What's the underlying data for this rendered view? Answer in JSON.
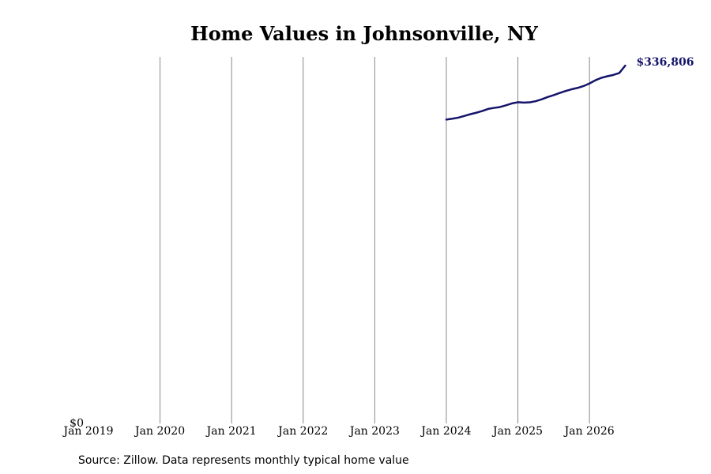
{
  "chart_data": {
    "type": "line",
    "title": "Home Values in Johnsonville, NY",
    "xlabel": "",
    "ylabel": "",
    "x_ticks": [
      "Jan 2019",
      "Jan 2020",
      "Jan 2021",
      "Jan 2022",
      "Jan 2023",
      "Jan 2024",
      "Jan 2025",
      "Jan 2026"
    ],
    "y_ticks": [
      "$0"
    ],
    "ylim": [
      0,
      345000
    ],
    "xlim": [
      "2019-01",
      "2026-08"
    ],
    "grid": "vertical",
    "line_color": "#14146b",
    "series": [
      {
        "x": [
          "2024-01",
          "2024-02",
          "2024-03",
          "2024-04",
          "2024-05",
          "2024-06",
          "2024-07",
          "2024-08",
          "2024-09",
          "2024-10",
          "2024-11",
          "2024-12",
          "2025-01",
          "2025-02",
          "2025-03",
          "2025-04",
          "2025-05",
          "2025-06",
          "2025-07",
          "2025-08",
          "2025-09",
          "2025-10",
          "2025-11",
          "2025-12",
          "2026-01",
          "2026-02",
          "2026-03",
          "2026-04",
          "2026-05",
          "2026-06",
          "2026-07"
        ],
        "values": [
          286000,
          286800,
          287800,
          289400,
          291000,
          292400,
          294000,
          296000,
          297000,
          297800,
          299400,
          301200,
          302300,
          302000,
          302200,
          303300,
          305100,
          307200,
          309000,
          311000,
          312900,
          314500,
          315800,
          317500,
          320000,
          323000,
          325300,
          326800,
          328000,
          329800,
          336806
        ]
      }
    ],
    "end_label": "$336,806"
  },
  "source_note": "Source: Zillow. Data represents monthly typical home value"
}
